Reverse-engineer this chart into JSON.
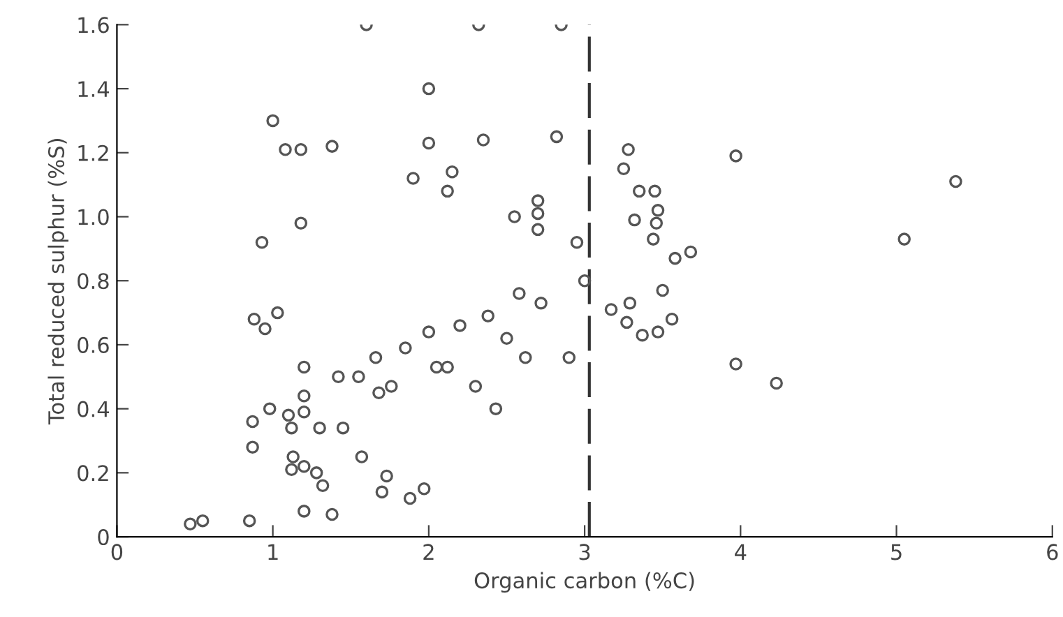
{
  "chart_data": {
    "type": "scatter",
    "xlabel": "Organic carbon (%C)",
    "ylabel": "Total reduced sulphur (%S)",
    "xlim": [
      0,
      6
    ],
    "xticks": [
      0,
      1,
      2,
      3,
      4,
      5,
      6
    ],
    "ylim": [
      0,
      1.6
    ],
    "yticks": [
      0,
      0.2,
      0.4,
      0.6,
      0.8,
      {
        "value": 1,
        "label": "1.0"
      },
      1.2,
      1.4,
      1.6
    ],
    "grid": false,
    "legend": false,
    "marker": "circle",
    "ref_lines": [
      {
        "axis": "x",
        "value": 3.03,
        "line_style": "dashed",
        "color": "#333333"
      }
    ],
    "series": [
      {
        "color": "#555555",
        "x": [
          0.47,
          0.55,
          0.85,
          0.87,
          0.87,
          0.88,
          0.93,
          0.95,
          0.98,
          1.0,
          1.03,
          1.08,
          1.1,
          1.12,
          1.13,
          1.12,
          1.18,
          1.18,
          1.2,
          1.2,
          1.2,
          1.2,
          1.2,
          1.28,
          1.3,
          1.32,
          1.38,
          1.38,
          1.42,
          1.45,
          1.55,
          1.57,
          1.6,
          1.66,
          1.68,
          1.7,
          1.73,
          1.76,
          1.88,
          1.85,
          1.9,
          1.97,
          2.0,
          2.0,
          2.0,
          2.05,
          2.12,
          2.12,
          2.15,
          2.2,
          2.3,
          2.32,
          2.35,
          2.38,
          2.43,
          2.5,
          2.55,
          2.58,
          2.62,
          2.7,
          2.7,
          2.7,
          2.72,
          2.82,
          2.85,
          2.9,
          2.95,
          3.0,
          3.28,
          3.25,
          3.35,
          3.45,
          3.47,
          3.32,
          3.46,
          3.44,
          3.58,
          3.68,
          3.5,
          3.17,
          3.29,
          3.27,
          3.37,
          3.47,
          3.56,
          3.97,
          3.97,
          4.23,
          5.05,
          5.38
        ],
        "values": [
          0.04,
          0.05,
          0.05,
          0.28,
          0.36,
          0.68,
          0.92,
          0.65,
          0.4,
          1.3,
          0.7,
          1.21,
          0.38,
          0.34,
          0.25,
          0.21,
          1.21,
          0.98,
          0.53,
          0.44,
          0.39,
          0.22,
          0.08,
          0.2,
          0.34,
          0.16,
          0.07,
          1.22,
          0.5,
          0.34,
          0.5,
          0.25,
          1.6,
          0.56,
          0.45,
          0.14,
          0.19,
          0.47,
          0.12,
          0.59,
          1.12,
          0.15,
          1.23,
          1.4,
          0.64,
          0.53,
          0.53,
          1.08,
          1.14,
          0.66,
          0.47,
          1.6,
          1.24,
          0.69,
          0.4,
          0.62,
          1.0,
          0.76,
          0.56,
          1.05,
          1.01,
          0.96,
          0.73,
          1.25,
          1.6,
          0.56,
          0.92,
          0.8,
          1.21,
          1.15,
          1.08,
          1.08,
          1.02,
          0.99,
          0.98,
          0.93,
          0.87,
          0.89,
          0.77,
          0.71,
          0.73,
          0.67,
          0.63,
          0.64,
          0.68,
          1.19,
          0.54,
          0.48,
          0.93,
          1.11
        ]
      }
    ]
  }
}
